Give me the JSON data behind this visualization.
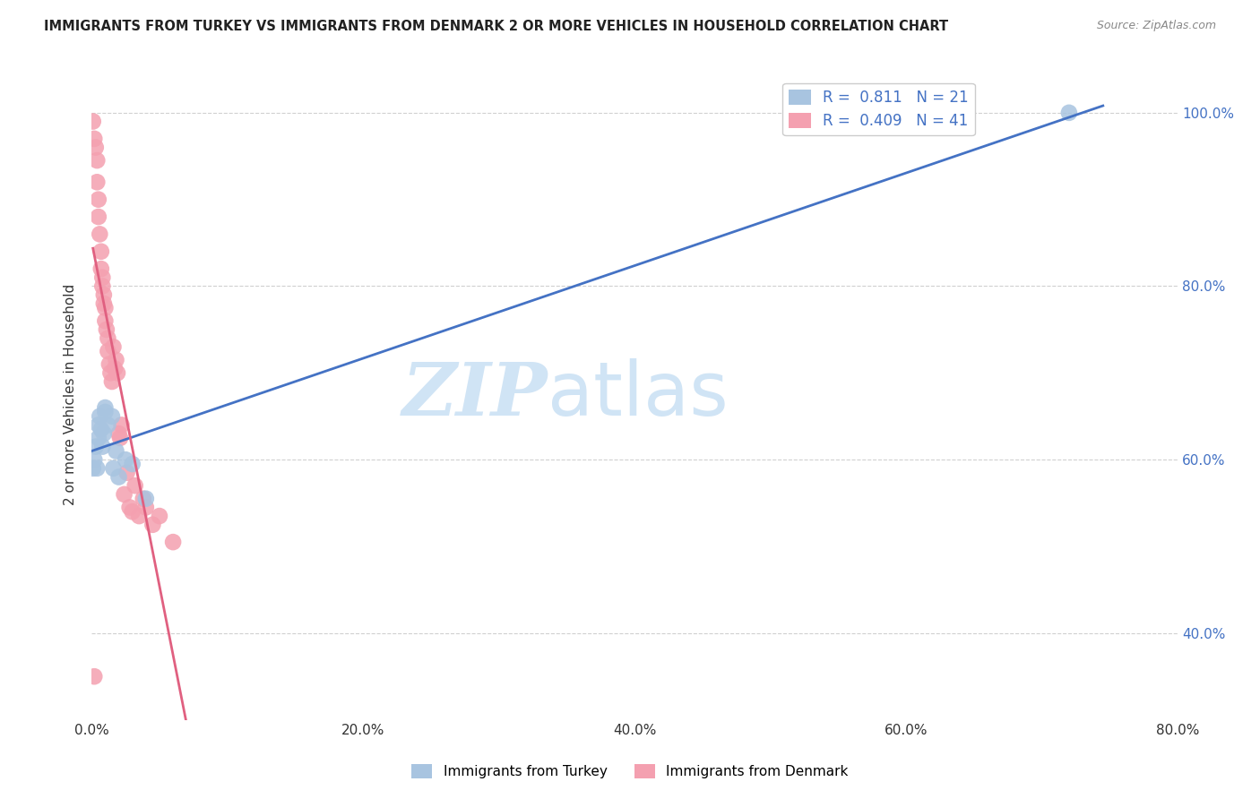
{
  "title": "IMMIGRANTS FROM TURKEY VS IMMIGRANTS FROM DENMARK 2 OR MORE VEHICLES IN HOUSEHOLD CORRELATION CHART",
  "source": "Source: ZipAtlas.com",
  "ylabel": "2 or more Vehicles in Household",
  "xlim": [
    0.0,
    0.8
  ],
  "ylim": [
    0.3,
    1.05
  ],
  "x_tick_vals": [
    0.0,
    0.2,
    0.4,
    0.6,
    0.8
  ],
  "y_tick_vals": [
    0.4,
    0.6,
    0.8,
    1.0
  ],
  "turkey_R": 0.811,
  "turkey_N": 21,
  "denmark_R": 0.409,
  "denmark_N": 41,
  "turkey_color": "#a8c4e0",
  "denmark_color": "#f4a0b0",
  "turkey_line_color": "#4472c4",
  "denmark_line_color": "#e06080",
  "background_color": "#ffffff",
  "watermark_zip": "ZIP",
  "watermark_atlas": "atlas",
  "watermark_color": "#d0e4f5",
  "turkey_x": [
    0.001,
    0.002,
    0.003,
    0.004,
    0.005,
    0.005,
    0.006,
    0.007,
    0.008,
    0.009,
    0.01,
    0.01,
    0.012,
    0.015,
    0.016,
    0.018,
    0.02,
    0.025,
    0.03,
    0.04,
    0.72
  ],
  "turkey_y": [
    0.59,
    0.6,
    0.615,
    0.59,
    0.625,
    0.64,
    0.65,
    0.635,
    0.615,
    0.63,
    0.655,
    0.66,
    0.64,
    0.65,
    0.59,
    0.61,
    0.58,
    0.6,
    0.595,
    0.555,
    1.0
  ],
  "denmark_x": [
    0.001,
    0.002,
    0.003,
    0.004,
    0.004,
    0.005,
    0.005,
    0.006,
    0.007,
    0.007,
    0.008,
    0.008,
    0.009,
    0.009,
    0.01,
    0.01,
    0.011,
    0.012,
    0.012,
    0.013,
    0.014,
    0.015,
    0.016,
    0.017,
    0.018,
    0.019,
    0.02,
    0.021,
    0.022,
    0.024,
    0.026,
    0.028,
    0.03,
    0.032,
    0.035,
    0.038,
    0.04,
    0.045,
    0.05,
    0.06,
    0.002
  ],
  "denmark_y": [
    0.99,
    0.97,
    0.96,
    0.945,
    0.92,
    0.9,
    0.88,
    0.86,
    0.84,
    0.82,
    0.81,
    0.8,
    0.79,
    0.78,
    0.775,
    0.76,
    0.75,
    0.74,
    0.725,
    0.71,
    0.7,
    0.69,
    0.73,
    0.705,
    0.715,
    0.7,
    0.63,
    0.625,
    0.64,
    0.56,
    0.585,
    0.545,
    0.54,
    0.57,
    0.535,
    0.555,
    0.545,
    0.525,
    0.535,
    0.505,
    0.35
  ],
  "legend_turkey_label": "R =  0.811   N = 21",
  "legend_denmark_label": "R =  0.409   N = 41",
  "bottom_legend_turkey": "Immigrants from Turkey",
  "bottom_legend_denmark": "Immigrants from Denmark"
}
